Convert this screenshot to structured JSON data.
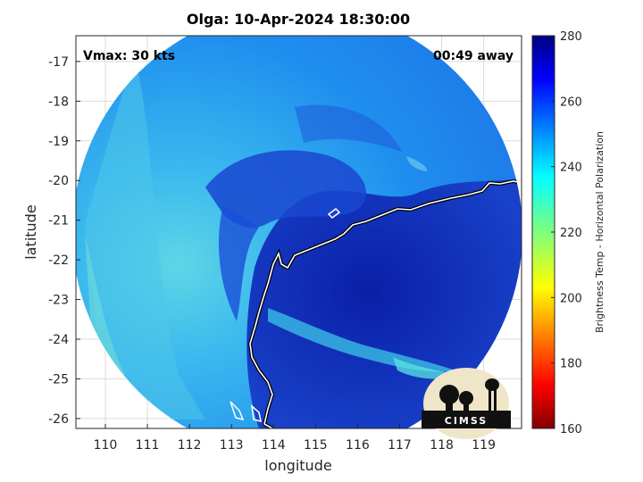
{
  "figure": {
    "title": "Olga: 10-Apr-2024 18:30:00",
    "vmax_label": "Vmax: 30 kts",
    "away_label": "00:49 away",
    "logo_text": "CIMSS"
  },
  "axes": {
    "xlabel": "longitude",
    "ylabel": "latitude",
    "xlim": [
      109.3,
      119.9
    ],
    "ylim": [
      -26.25,
      -16.35
    ],
    "xticks": [
      "110",
      "111",
      "112",
      "113",
      "114",
      "115",
      "116",
      "117",
      "118",
      "119"
    ],
    "yticks": [
      "-17",
      "-18",
      "-19",
      "-20",
      "-21",
      "-22",
      "-23",
      "-24",
      "-25",
      "-26"
    ],
    "grid": true
  },
  "colorbar": {
    "label": "Brightness Temp - Horizontal Polarization",
    "min": 160,
    "max": 280,
    "ticks": [
      "280",
      "260",
      "240",
      "220",
      "200",
      "180",
      "160"
    ],
    "colormap": "jet"
  },
  "colors": {
    "cold_core": "#0a2ab8",
    "outer_swath": "#2196f0",
    "band": "#3fd0ea",
    "coastline": "#ffffff"
  }
}
